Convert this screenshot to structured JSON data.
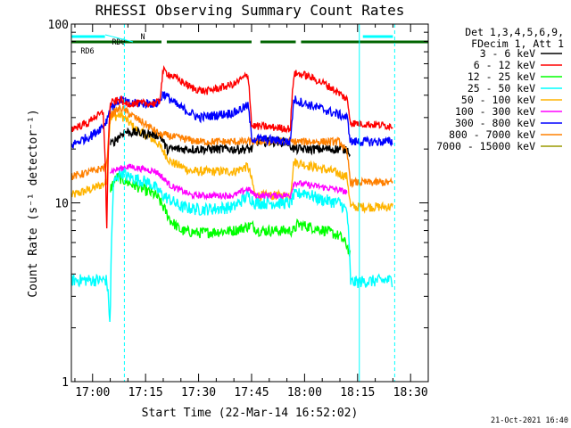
{
  "chart_data": {
    "type": "line",
    "title": "RHESSI Observing Summary Count Rates",
    "xlabel": "Start Time (22-Mar-14 16:52:02)",
    "ylabel": "Count Rate (s⁻¹ detector⁻¹)",
    "y_scale": "log",
    "ylim": [
      1,
      100
    ],
    "xlim_minutes": [
      -6.0,
      95.0
    ],
    "x_ticks": [
      {
        "label": "17:00",
        "min": 0
      },
      {
        "label": "17:15",
        "min": 15
      },
      {
        "label": "17:30",
        "min": 30
      },
      {
        "label": "17:45",
        "min": 45
      },
      {
        "label": "18:00",
        "min": 60
      },
      {
        "label": "18:15",
        "min": 75
      },
      {
        "label": "18:30",
        "min": 90
      }
    ],
    "y_ticks": [
      {
        "label": "1",
        "value": 1
      },
      {
        "label": "10",
        "value": 10
      },
      {
        "label": "100",
        "value": 100
      }
    ],
    "legend_header": [
      "Det 1,3,4,5,6,9,",
      "FDecim 1, Att 1"
    ],
    "legend_position": "right",
    "series": [
      {
        "name": "3 - 6 keV",
        "color": "#000000",
        "noise": 0.06,
        "points": [
          [
            -6,
            0
          ],
          [
            4,
            0
          ],
          [
            5,
            21
          ],
          [
            9,
            25
          ],
          [
            19,
            24
          ],
          [
            21,
            20
          ],
          [
            45,
            20
          ],
          [
            46,
            22
          ],
          [
            53,
            22
          ],
          [
            55,
            22
          ],
          [
            57,
            20
          ],
          [
            72,
            20
          ],
          [
            73,
            19
          ],
          [
            95,
            null
          ]
        ]
      },
      {
        "name": "6 - 12 keV",
        "color": "#ff0000",
        "noise": 0.05,
        "points": [
          [
            -6,
            26
          ],
          [
            -1,
            28
          ],
          [
            0,
            30
          ],
          [
            2,
            31
          ],
          [
            3,
            32
          ],
          [
            4,
            6
          ],
          [
            5,
            36
          ],
          [
            8,
            38
          ],
          [
            9,
            36
          ],
          [
            18,
            36
          ],
          [
            19,
            37
          ],
          [
            20,
            55
          ],
          [
            22,
            52
          ],
          [
            28,
            44
          ],
          [
            32,
            42
          ],
          [
            40,
            46
          ],
          [
            44,
            52
          ],
          [
            45,
            27
          ],
          [
            56,
            26
          ],
          [
            57,
            53
          ],
          [
            60,
            52
          ],
          [
            66,
            46
          ],
          [
            72,
            38
          ],
          [
            73,
            28
          ],
          [
            84,
            27
          ],
          [
            85,
            27
          ]
        ]
      },
      {
        "name": "12 - 25 keV",
        "color": "#00ff00",
        "noise": 0.07,
        "points": [
          [
            -6,
            0
          ],
          [
            4,
            0
          ],
          [
            5,
            12
          ],
          [
            7,
            14
          ],
          [
            10,
            13
          ],
          [
            14,
            12
          ],
          [
            18,
            11
          ],
          [
            22,
            8
          ],
          [
            25,
            7
          ],
          [
            30,
            6.8
          ],
          [
            40,
            7
          ],
          [
            45,
            7.5
          ],
          [
            47,
            7
          ],
          [
            57,
            7
          ],
          [
            58,
            7.6
          ],
          [
            66,
            7
          ],
          [
            70,
            6.5
          ],
          [
            72,
            5.8
          ],
          [
            73,
            5
          ]
        ]
      },
      {
        "name": "25 - 50 keV",
        "color": "#00ffff",
        "noise": 0.08,
        "points": [
          [
            -6,
            3.7
          ],
          [
            4,
            3.7
          ],
          [
            5,
            2
          ],
          [
            6,
            13
          ],
          [
            8,
            15
          ],
          [
            10,
            14
          ],
          [
            16,
            13
          ],
          [
            20,
            11
          ],
          [
            25,
            9.5
          ],
          [
            30,
            9.2
          ],
          [
            35,
            9.3
          ],
          [
            40,
            9.5
          ],
          [
            44,
            11
          ],
          [
            46,
            10
          ],
          [
            54,
            10
          ],
          [
            56,
            10
          ],
          [
            57,
            11
          ],
          [
            60,
            11.5
          ],
          [
            64,
            10.5
          ],
          [
            70,
            10
          ],
          [
            72,
            9
          ],
          [
            73,
            3.6
          ],
          [
            84,
            3.7
          ],
          [
            85,
            3.7
          ]
        ]
      },
      {
        "name": "50 - 100 keV",
        "color": "#ffb400",
        "noise": 0.06,
        "points": [
          [
            -6,
            11
          ],
          [
            0,
            12
          ],
          [
            4,
            13
          ],
          [
            5,
            30
          ],
          [
            8,
            31
          ],
          [
            12,
            26
          ],
          [
            18,
            22
          ],
          [
            22,
            17
          ],
          [
            28,
            15
          ],
          [
            40,
            15
          ],
          [
            44,
            16
          ],
          [
            46,
            11
          ],
          [
            56,
            11
          ],
          [
            57,
            17
          ],
          [
            62,
            16
          ],
          [
            68,
            15
          ],
          [
            72,
            14
          ],
          [
            73,
            9.5
          ],
          [
            84,
            9.5
          ],
          [
            85,
            9.5
          ]
        ]
      },
      {
        "name": "100 - 300 keV",
        "color": "#ff00ff",
        "noise": 0.04,
        "points": [
          [
            5,
            15
          ],
          [
            10,
            16
          ],
          [
            18,
            15
          ],
          [
            22,
            12.5
          ],
          [
            28,
            11
          ],
          [
            40,
            11
          ],
          [
            44,
            12
          ],
          [
            46,
            11
          ],
          [
            56,
            11
          ],
          [
            57,
            13
          ],
          [
            62,
            12.5
          ],
          [
            68,
            12
          ],
          [
            72,
            11.5
          ]
        ]
      },
      {
        "name": "300 - 800 keV",
        "color": "#0000ff",
        "noise": 0.06,
        "points": [
          [
            -6,
            21
          ],
          [
            0,
            24
          ],
          [
            3,
            27
          ],
          [
            4,
            29
          ],
          [
            5,
            34
          ],
          [
            8,
            38
          ],
          [
            10,
            36
          ],
          [
            18,
            36
          ],
          [
            19,
            37
          ],
          [
            20,
            41
          ],
          [
            24,
            35
          ],
          [
            30,
            30
          ],
          [
            40,
            32
          ],
          [
            44,
            35
          ],
          [
            45,
            23
          ],
          [
            56,
            22
          ],
          [
            57,
            38
          ],
          [
            60,
            36
          ],
          [
            66,
            33
          ],
          [
            72,
            30
          ],
          [
            73,
            22
          ],
          [
            84,
            22
          ],
          [
            85,
            22
          ]
        ]
      },
      {
        "name": "800 - 7000 keV",
        "color": "#ff8000",
        "noise": 0.05,
        "points": [
          [
            -6,
            14
          ],
          [
            0,
            15
          ],
          [
            4,
            16
          ],
          [
            5,
            31
          ],
          [
            8,
            34
          ],
          [
            12,
            30
          ],
          [
            18,
            25
          ],
          [
            19,
            24
          ],
          [
            20,
            24
          ],
          [
            30,
            22
          ],
          [
            40,
            22
          ],
          [
            44,
            22
          ],
          [
            46,
            22
          ],
          [
            56,
            22
          ],
          [
            58,
            22
          ],
          [
            70,
            22
          ],
          [
            72,
            19
          ],
          [
            73,
            13
          ],
          [
            84,
            13
          ],
          [
            85,
            13
          ]
        ]
      },
      {
        "name": "7000 - 15000 keV",
        "color": "#9a9a00",
        "noise": 0.0,
        "points": []
      }
    ],
    "annotation_bars": [
      {
        "label": "RD0",
        "color": "#00ffff",
        "segments": [
          [
            -6,
            3.5
          ],
          [
            76.5,
            85
          ]
        ]
      },
      {
        "label": "N",
        "color": "#00ffff",
        "segments": []
      },
      {
        "label": "RD6",
        "color": "#006400",
        "segments": [
          [
            -6,
            3
          ],
          [
            -0.5,
            19.5
          ],
          [
            21,
            45
          ],
          [
            47.5,
            57.5
          ],
          [
            59,
            95
          ]
        ]
      }
    ],
    "vlines": [
      {
        "min": 9,
        "color": "#00ffff",
        "style": "dashed"
      },
      {
        "min": 75.5,
        "color": "#00ffff",
        "style": "solid"
      },
      {
        "min": 85.5,
        "color": "#00ffff",
        "style": "dashed"
      }
    ]
  },
  "footer": {
    "date": "21-Oct-2021 16:40"
  }
}
